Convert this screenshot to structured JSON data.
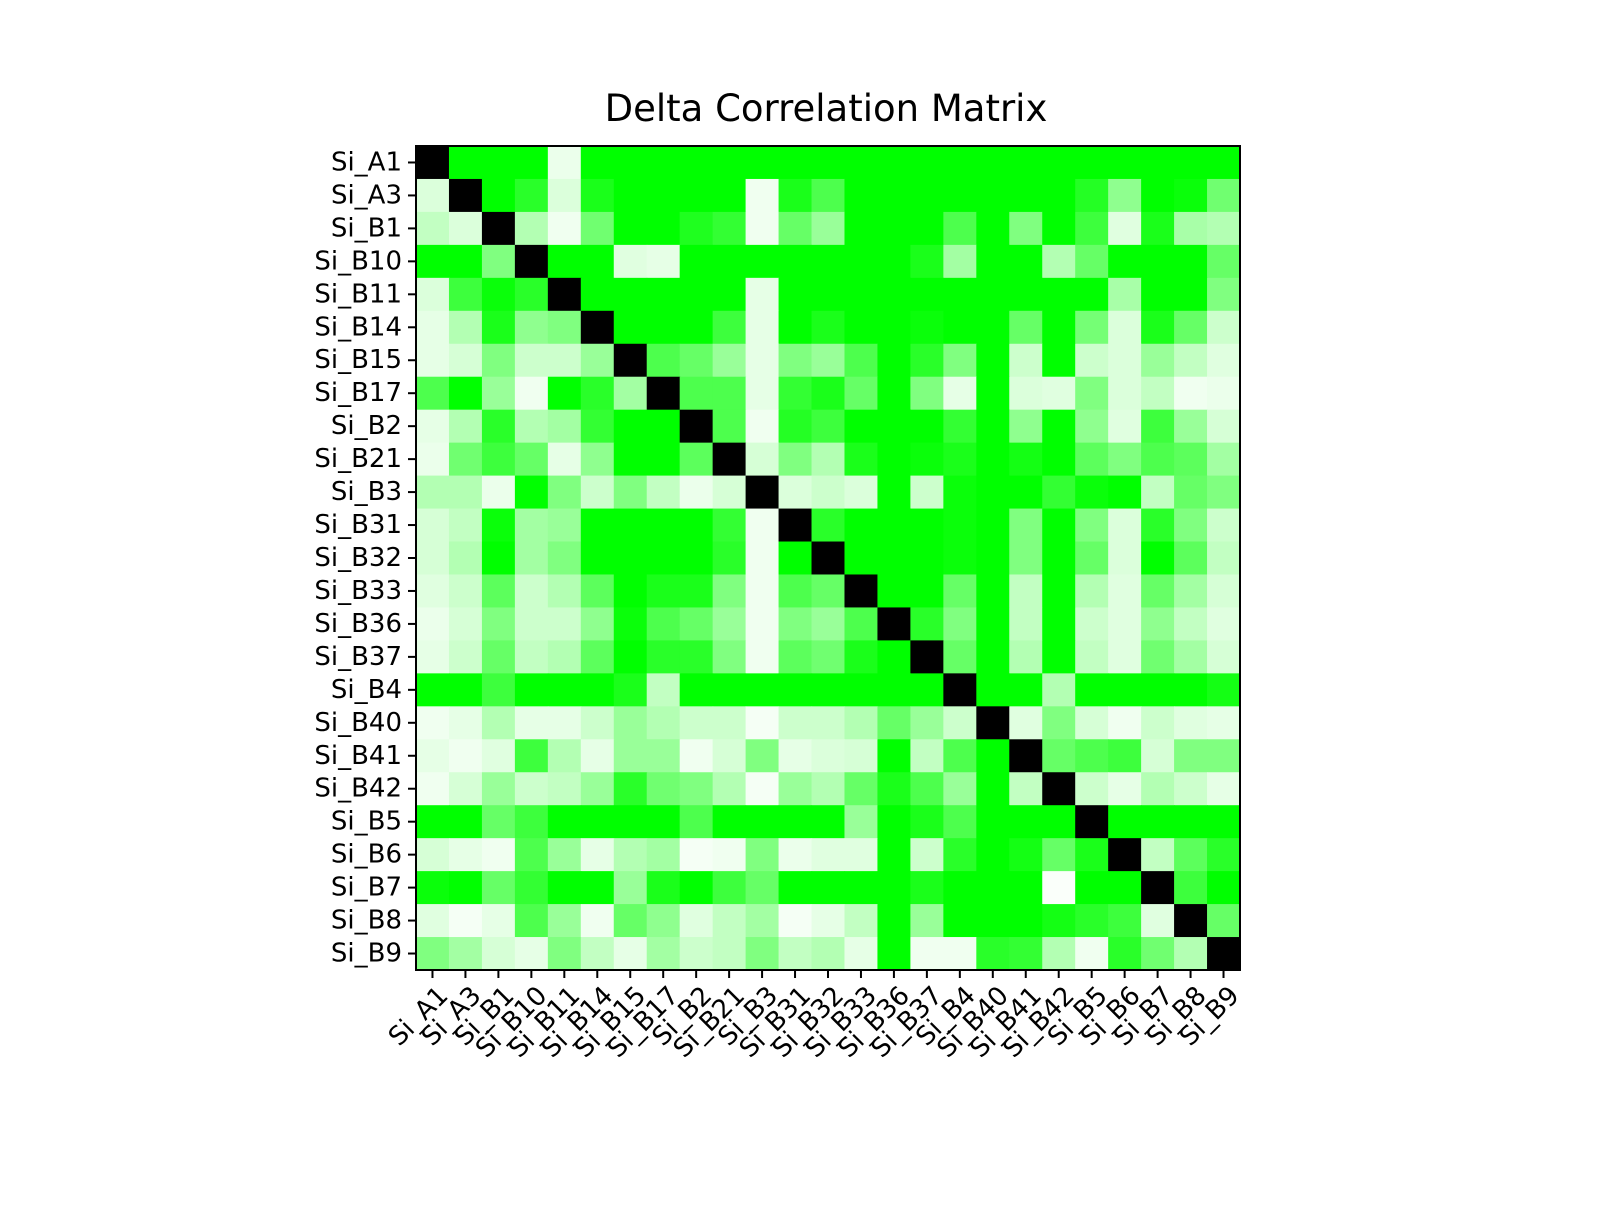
{
  "chart_data": {
    "type": "heatmap",
    "title": "Delta Correlation Matrix",
    "xlabel": "",
    "ylabel": "",
    "labels": [
      "Si_A1",
      "Si_A3",
      "Si_B1",
      "Si_B10",
      "Si_B11",
      "Si_B14",
      "Si_B15",
      "Si_B17",
      "Si_B2",
      "Si_B21",
      "Si_B3",
      "Si_B31",
      "Si_B32",
      "Si_B33",
      "Si_B36",
      "Si_B37",
      "Si_B4",
      "Si_B40",
      "Si_B41",
      "Si_B42",
      "Si_B5",
      "Si_B6",
      "Si_B7",
      "Si_B8",
      "Si_B9"
    ],
    "value_range": [
      0,
      1
    ],
    "colormap": [
      "#ffffff",
      "#00ff00",
      "#000000"
    ],
    "grid": false,
    "legend": "none",
    "values": [
      [
        1.0,
        0.5,
        0.5,
        0.5,
        0.04,
        0.5,
        0.5,
        0.5,
        0.5,
        0.5,
        0.5,
        0.5,
        0.5,
        0.5,
        0.5,
        0.5,
        0.5,
        0.5,
        0.5,
        0.5,
        0.5,
        0.5,
        0.5,
        0.5,
        0.5
      ],
      [
        0.07,
        1.0,
        0.5,
        0.42,
        0.07,
        0.45,
        0.5,
        0.5,
        0.5,
        0.5,
        0.03,
        0.45,
        0.35,
        0.5,
        0.5,
        0.5,
        0.5,
        0.5,
        0.5,
        0.5,
        0.43,
        0.22,
        0.5,
        0.48,
        0.28
      ],
      [
        0.12,
        0.07,
        1.0,
        0.15,
        0.03,
        0.28,
        0.5,
        0.5,
        0.44,
        0.4,
        0.03,
        0.3,
        0.2,
        0.5,
        0.5,
        0.5,
        0.35,
        0.5,
        0.25,
        0.5,
        0.38,
        0.06,
        0.45,
        0.17,
        0.15
      ],
      [
        0.5,
        0.5,
        0.25,
        1.0,
        0.5,
        0.5,
        0.06,
        0.05,
        0.5,
        0.5,
        0.5,
        0.5,
        0.5,
        0.5,
        0.5,
        0.45,
        0.18,
        0.5,
        0.5,
        0.15,
        0.3,
        0.5,
        0.5,
        0.5,
        0.3
      ],
      [
        0.07,
        0.38,
        0.48,
        0.42,
        1.0,
        0.5,
        0.5,
        0.5,
        0.5,
        0.5,
        0.05,
        0.5,
        0.5,
        0.5,
        0.5,
        0.5,
        0.5,
        0.5,
        0.5,
        0.5,
        0.5,
        0.17,
        0.5,
        0.5,
        0.25
      ],
      [
        0.05,
        0.15,
        0.45,
        0.22,
        0.25,
        1.0,
        0.5,
        0.5,
        0.5,
        0.38,
        0.05,
        0.5,
        0.45,
        0.5,
        0.5,
        0.48,
        0.5,
        0.5,
        0.3,
        0.5,
        0.27,
        0.07,
        0.45,
        0.3,
        0.1
      ],
      [
        0.05,
        0.08,
        0.25,
        0.1,
        0.1,
        0.2,
        1.0,
        0.35,
        0.3,
        0.2,
        0.05,
        0.25,
        0.2,
        0.35,
        0.5,
        0.42,
        0.25,
        0.5,
        0.1,
        0.5,
        0.1,
        0.07,
        0.2,
        0.12,
        0.06
      ],
      [
        0.35,
        0.5,
        0.2,
        0.03,
        0.5,
        0.42,
        0.18,
        1.0,
        0.35,
        0.35,
        0.05,
        0.4,
        0.45,
        0.3,
        0.5,
        0.25,
        0.05,
        0.5,
        0.07,
        0.06,
        0.25,
        0.07,
        0.12,
        0.03,
        0.04
      ],
      [
        0.05,
        0.15,
        0.42,
        0.15,
        0.18,
        0.4,
        0.5,
        0.5,
        1.0,
        0.35,
        0.03,
        0.43,
        0.38,
        0.5,
        0.5,
        0.5,
        0.4,
        0.5,
        0.22,
        0.5,
        0.22,
        0.06,
        0.38,
        0.2,
        0.08
      ],
      [
        0.04,
        0.28,
        0.38,
        0.3,
        0.05,
        0.22,
        0.5,
        0.5,
        0.32,
        1.0,
        0.08,
        0.25,
        0.15,
        0.45,
        0.5,
        0.48,
        0.45,
        0.5,
        0.46,
        0.5,
        0.32,
        0.25,
        0.35,
        0.32,
        0.18
      ],
      [
        0.15,
        0.15,
        0.04,
        0.5,
        0.25,
        0.1,
        0.25,
        0.12,
        0.04,
        0.08,
        1.0,
        0.07,
        0.1,
        0.07,
        0.5,
        0.1,
        0.48,
        0.5,
        0.5,
        0.4,
        0.48,
        0.5,
        0.12,
        0.3,
        0.25
      ],
      [
        0.08,
        0.12,
        0.48,
        0.18,
        0.2,
        0.5,
        0.5,
        0.5,
        0.5,
        0.4,
        0.03,
        1.0,
        0.42,
        0.5,
        0.5,
        0.5,
        0.48,
        0.5,
        0.25,
        0.5,
        0.25,
        0.07,
        0.42,
        0.25,
        0.1
      ],
      [
        0.08,
        0.15,
        0.5,
        0.18,
        0.25,
        0.5,
        0.5,
        0.5,
        0.5,
        0.42,
        0.03,
        0.5,
        1.0,
        0.5,
        0.5,
        0.5,
        0.48,
        0.5,
        0.25,
        0.5,
        0.3,
        0.07,
        0.5,
        0.32,
        0.12
      ],
      [
        0.06,
        0.1,
        0.32,
        0.1,
        0.15,
        0.32,
        0.5,
        0.45,
        0.45,
        0.25,
        0.03,
        0.35,
        0.3,
        1.0,
        0.5,
        0.5,
        0.3,
        0.5,
        0.12,
        0.5,
        0.15,
        0.06,
        0.3,
        0.18,
        0.08
      ],
      [
        0.04,
        0.08,
        0.25,
        0.1,
        0.1,
        0.22,
        0.48,
        0.35,
        0.3,
        0.2,
        0.03,
        0.25,
        0.2,
        0.35,
        1.0,
        0.42,
        0.25,
        0.5,
        0.12,
        0.5,
        0.1,
        0.06,
        0.22,
        0.12,
        0.06
      ],
      [
        0.05,
        0.1,
        0.3,
        0.12,
        0.15,
        0.32,
        0.5,
        0.42,
        0.42,
        0.25,
        0.03,
        0.32,
        0.28,
        0.45,
        0.5,
        1.0,
        0.3,
        0.5,
        0.15,
        0.5,
        0.12,
        0.06,
        0.28,
        0.18,
        0.08
      ],
      [
        0.5,
        0.5,
        0.38,
        0.5,
        0.5,
        0.5,
        0.45,
        0.12,
        0.5,
        0.5,
        0.5,
        0.5,
        0.5,
        0.5,
        0.5,
        0.5,
        1.0,
        0.5,
        0.5,
        0.15,
        0.5,
        0.5,
        0.5,
        0.5,
        0.46
      ],
      [
        0.03,
        0.05,
        0.15,
        0.05,
        0.05,
        0.1,
        0.2,
        0.15,
        0.1,
        0.1,
        0.02,
        0.1,
        0.1,
        0.15,
        0.3,
        0.2,
        0.1,
        1.0,
        0.06,
        0.25,
        0.08,
        0.03,
        0.1,
        0.06,
        0.05
      ],
      [
        0.05,
        0.03,
        0.06,
        0.38,
        0.15,
        0.05,
        0.2,
        0.2,
        0.03,
        0.08,
        0.25,
        0.05,
        0.07,
        0.08,
        0.5,
        0.12,
        0.35,
        0.5,
        1.0,
        0.3,
        0.35,
        0.38,
        0.08,
        0.25,
        0.25
      ],
      [
        0.03,
        0.08,
        0.2,
        0.1,
        0.12,
        0.2,
        0.42,
        0.28,
        0.25,
        0.15,
        0.02,
        0.2,
        0.15,
        0.3,
        0.45,
        0.35,
        0.2,
        0.5,
        0.12,
        1.0,
        0.1,
        0.05,
        0.15,
        0.1,
        0.05
      ],
      [
        0.5,
        0.5,
        0.3,
        0.38,
        0.5,
        0.5,
        0.5,
        0.5,
        0.35,
        0.5,
        0.5,
        0.5,
        0.5,
        0.2,
        0.5,
        0.45,
        0.35,
        0.5,
        0.5,
        0.5,
        1.0,
        0.5,
        0.5,
        0.5,
        0.5
      ],
      [
        0.08,
        0.05,
        0.03,
        0.35,
        0.2,
        0.05,
        0.15,
        0.18,
        0.02,
        0.03,
        0.25,
        0.04,
        0.06,
        0.06,
        0.5,
        0.1,
        0.42,
        0.5,
        0.46,
        0.3,
        0.45,
        1.0,
        0.12,
        0.32,
        0.42
      ],
      [
        0.48,
        0.5,
        0.3,
        0.4,
        0.5,
        0.5,
        0.2,
        0.45,
        0.5,
        0.38,
        0.3,
        0.5,
        0.5,
        0.5,
        0.5,
        0.45,
        0.5,
        0.5,
        0.5,
        0.01,
        0.5,
        0.5,
        1.0,
        0.38,
        0.5
      ],
      [
        0.06,
        0.02,
        0.05,
        0.35,
        0.2,
        0.03,
        0.3,
        0.22,
        0.06,
        0.12,
        0.18,
        0.02,
        0.05,
        0.12,
        0.5,
        0.2,
        0.5,
        0.5,
        0.5,
        0.46,
        0.42,
        0.38,
        0.06,
        1.0,
        0.3
      ],
      [
        0.25,
        0.18,
        0.08,
        0.05,
        0.25,
        0.12,
        0.05,
        0.18,
        0.1,
        0.12,
        0.25,
        0.12,
        0.15,
        0.05,
        0.5,
        0.03,
        0.03,
        0.42,
        0.4,
        0.15,
        0.03,
        0.42,
        0.28,
        0.15,
        1.0
      ]
    ]
  }
}
